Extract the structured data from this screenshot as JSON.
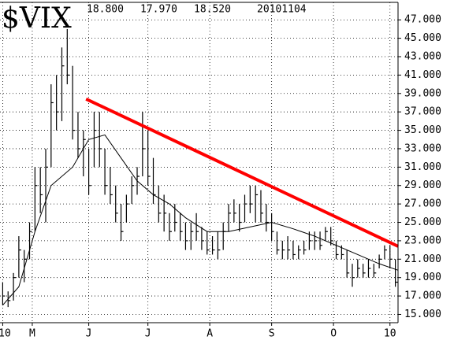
{
  "chart_data": {
    "type": "hlc",
    "title": "$VIX",
    "header_values": [
      "18.800",
      "17.970",
      "18.520",
      "20101104"
    ],
    "color": "#000000",
    "xlim": [
      0,
      148
    ],
    "ylim": [
      14.1,
      48.9
    ],
    "grid": true,
    "xticks": [
      {
        "value": 1,
        "label": "10"
      },
      {
        "value": 12,
        "label": "M"
      },
      {
        "value": 33,
        "label": "J"
      },
      {
        "value": 55,
        "label": "J"
      },
      {
        "value": 78,
        "label": "A"
      },
      {
        "value": 101,
        "label": "S"
      },
      {
        "value": 124,
        "label": "O"
      },
      {
        "value": 145,
        "label": "10"
      }
    ],
    "yticks": [
      {
        "value": 15,
        "label": "15.000"
      },
      {
        "value": 17,
        "label": "17.000"
      },
      {
        "value": 19,
        "label": "19.000"
      },
      {
        "value": 21,
        "label": "21.000"
      },
      {
        "value": 23,
        "label": "23.000"
      },
      {
        "value": 25,
        "label": "25.000"
      },
      {
        "value": 27,
        "label": "27.000"
      },
      {
        "value": 29,
        "label": "29.000"
      },
      {
        "value": 31,
        "label": "31.000"
      },
      {
        "value": 33,
        "label": "33.000"
      },
      {
        "value": 35,
        "label": "35.000"
      },
      {
        "value": 37,
        "label": "37.000"
      },
      {
        "value": 39,
        "label": "39.000"
      },
      {
        "value": 41,
        "label": "41.000"
      },
      {
        "value": 43,
        "label": "43.000"
      },
      {
        "value": 45,
        "label": "45.000"
      },
      {
        "value": 47,
        "label": "47.000"
      }
    ],
    "x": [
      1,
      3,
      5,
      7,
      9,
      11,
      13,
      15,
      17,
      19,
      21,
      23,
      25,
      27,
      29,
      31,
      33,
      35,
      37,
      39,
      41,
      43,
      45,
      47,
      49,
      51,
      53,
      55,
      57,
      59,
      61,
      63,
      65,
      67,
      69,
      71,
      73,
      75,
      77,
      79,
      81,
      83,
      85,
      87,
      89,
      91,
      93,
      95,
      97,
      99,
      101,
      103,
      105,
      107,
      109,
      111,
      113,
      115,
      117,
      119,
      121,
      123,
      125,
      127,
      129,
      131,
      133,
      135,
      137,
      139,
      141,
      143,
      145,
      147
    ],
    "low": [
      16,
      15.8,
      16.5,
      19,
      18.5,
      21,
      24,
      26,
      25,
      31,
      35,
      36,
      40,
      34,
      32,
      30,
      28,
      31,
      31,
      28,
      27,
      25,
      23,
      25,
      27,
      28,
      30,
      29,
      27,
      25,
      24,
      23,
      24,
      23,
      22,
      22,
      23,
      22,
      21.5,
      21.5,
      21,
      22,
      24,
      25,
      24,
      25,
      26,
      25,
      25,
      24,
      23,
      21.5,
      21,
      21,
      21,
      21,
      21.5,
      22,
      22,
      22,
      23,
      22.5,
      21,
      21,
      19,
      18,
      19,
      19,
      19,
      19,
      20,
      21,
      20,
      18
    ],
    "high": [
      18.5,
      17.5,
      19.5,
      23.5,
      22,
      25,
      31,
      31,
      33,
      40,
      41,
      44,
      46,
      42,
      37,
      35,
      33,
      37,
      37,
      33,
      31,
      29,
      27,
      28,
      30,
      31,
      37,
      35,
      32,
      29,
      28,
      26,
      27,
      26,
      25,
      25,
      26,
      24.5,
      24,
      23.5,
      24,
      25,
      27,
      27.5,
      27,
      28,
      29,
      29,
      28.5,
      27,
      26,
      24,
      23,
      23.5,
      23,
      22.5,
      23,
      24,
      24,
      24,
      24.5,
      24.5,
      23,
      22.5,
      22,
      20.5,
      21,
      20.5,
      21,
      20.5,
      21.5,
      22.5,
      22.5,
      21
    ],
    "close": [
      17,
      16.5,
      19,
      22,
      21,
      24,
      29,
      28,
      31,
      38,
      37,
      42,
      41,
      35,
      33,
      34,
      29,
      35,
      33,
      29,
      28,
      26,
      24,
      27,
      29,
      30,
      33,
      30,
      28,
      26,
      26,
      24,
      25,
      24,
      23,
      24,
      24,
      23,
      22,
      22,
      22,
      24,
      26,
      26,
      25,
      27,
      27,
      28,
      26,
      25,
      24,
      22,
      22,
      22,
      21.5,
      22,
      22,
      23,
      23,
      22.5,
      24,
      23,
      21.5,
      21.5,
      19.5,
      19,
      20,
      19.5,
      20,
      19.5,
      21,
      22,
      21,
      18.5
    ],
    "average": {
      "color": "#000000",
      "x": [
        1,
        7,
        13,
        19,
        27,
        33,
        39,
        45,
        51,
        57,
        63,
        69,
        77,
        85,
        93,
        101,
        109,
        117,
        125,
        133,
        141,
        148
      ],
      "values": [
        16,
        18,
        24,
        29,
        31,
        34,
        34.5,
        32,
        29.5,
        28,
        27,
        25.5,
        24,
        24,
        24.5,
        25,
        24.3,
        23.5,
        22.5,
        21.5,
        20.5,
        19.8
      ]
    },
    "trendline": {
      "color": "#ff0000",
      "x": [
        32,
        148
      ],
      "values": [
        38.4,
        22.4
      ]
    }
  }
}
